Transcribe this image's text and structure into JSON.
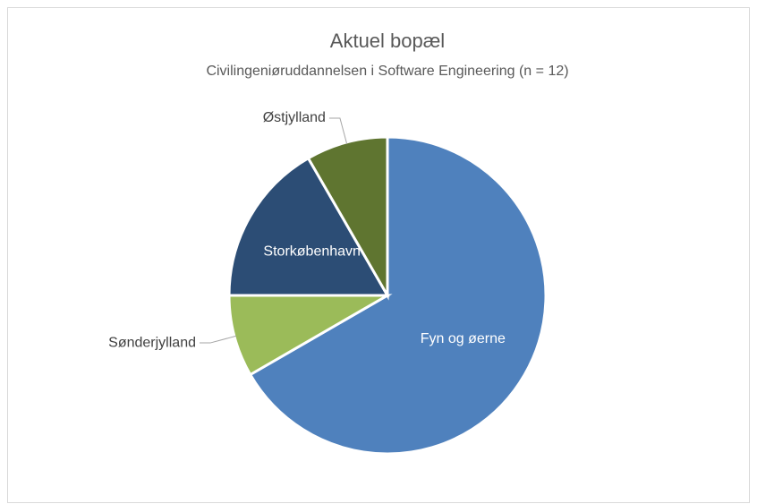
{
  "chart_data": {
    "type": "pie",
    "title": "Aktuel bopæl",
    "subtitle": "Civilingeniøruddannelsen i Software Engineering (n = 12)",
    "categories": [
      "Fyn og øerne",
      "Sønderjylland",
      "Storkøbenhavn",
      "Østjylland"
    ],
    "values": [
      8,
      1,
      2,
      1
    ],
    "colors": [
      "#4f81bd",
      "#9bbb59",
      "#2c4d75",
      "#5f7530"
    ]
  }
}
